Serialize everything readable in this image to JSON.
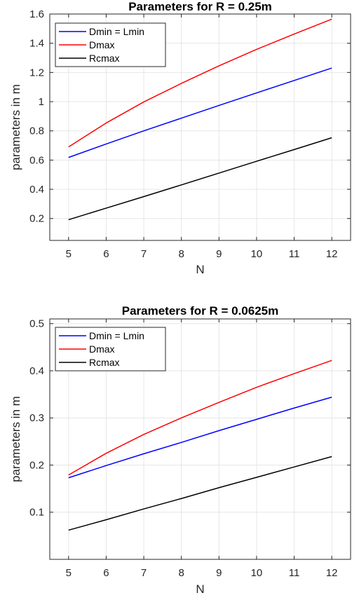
{
  "chart_data": [
    {
      "type": "line",
      "title": "Parameters for R = 0.25m",
      "xlabel": "N",
      "ylabel": "parameters in m",
      "xlim": [
        4.5,
        12.5
      ],
      "ylim": [
        0.05,
        1.6
      ],
      "xticks": [
        5,
        6,
        7,
        8,
        9,
        10,
        11,
        12
      ],
      "yticks": [
        0.2,
        0.4,
        0.6,
        0.8,
        1,
        1.2,
        1.4,
        1.6
      ],
      "ytick_labels": [
        "0.2",
        "0.4",
        "0.6",
        "0.8",
        "1",
        "1.2",
        "1.4",
        "1.6"
      ],
      "grid": true,
      "legend_position": "top-left",
      "x": [
        5,
        6,
        7,
        8,
        9,
        10,
        11,
        12
      ],
      "series": [
        {
          "name": "Dmin = Lmin",
          "color": "#0000ff",
          "values": [
            0.618,
            0.71,
            0.8,
            0.887,
            0.974,
            1.06,
            1.145,
            1.23
          ]
        },
        {
          "name": "Dmax",
          "color": "#ff0000",
          "values": [
            0.69,
            0.854,
            0.998,
            1.125,
            1.245,
            1.358,
            1.463,
            1.565
          ]
        },
        {
          "name": "Rcmax",
          "color": "#000000",
          "values": [
            0.192,
            0.271,
            0.35,
            0.43,
            0.511,
            0.592,
            0.672,
            0.753
          ]
        }
      ]
    },
    {
      "type": "line",
      "title": "Parameters for R = 0.0625m",
      "xlabel": "N",
      "ylabel": "parameters in m",
      "xlim": [
        4.5,
        12.5
      ],
      "ylim": [
        0,
        0.51
      ],
      "xticks": [
        5,
        6,
        7,
        8,
        9,
        10,
        11,
        12
      ],
      "yticks": [
        0.1,
        0.2,
        0.3,
        0.4,
        0.5
      ],
      "ytick_labels": [
        "0.1",
        "0.2",
        "0.3",
        "0.4",
        "0.5"
      ],
      "grid": true,
      "legend_position": "top-left",
      "x": [
        5,
        6,
        7,
        8,
        9,
        10,
        11,
        12
      ],
      "series": [
        {
          "name": "Dmin = Lmin",
          "color": "#0000ff",
          "values": [
            0.173,
            0.199,
            0.224,
            0.248,
            0.273,
            0.297,
            0.321,
            0.344
          ]
        },
        {
          "name": "Dmax",
          "color": "#ff0000",
          "values": [
            0.179,
            0.225,
            0.265,
            0.3,
            0.333,
            0.365,
            0.394,
            0.422
          ]
        },
        {
          "name": "Rcmax",
          "color": "#000000",
          "values": [
            0.062,
            0.084,
            0.107,
            0.129,
            0.152,
            0.174,
            0.196,
            0.218
          ]
        }
      ]
    }
  ]
}
